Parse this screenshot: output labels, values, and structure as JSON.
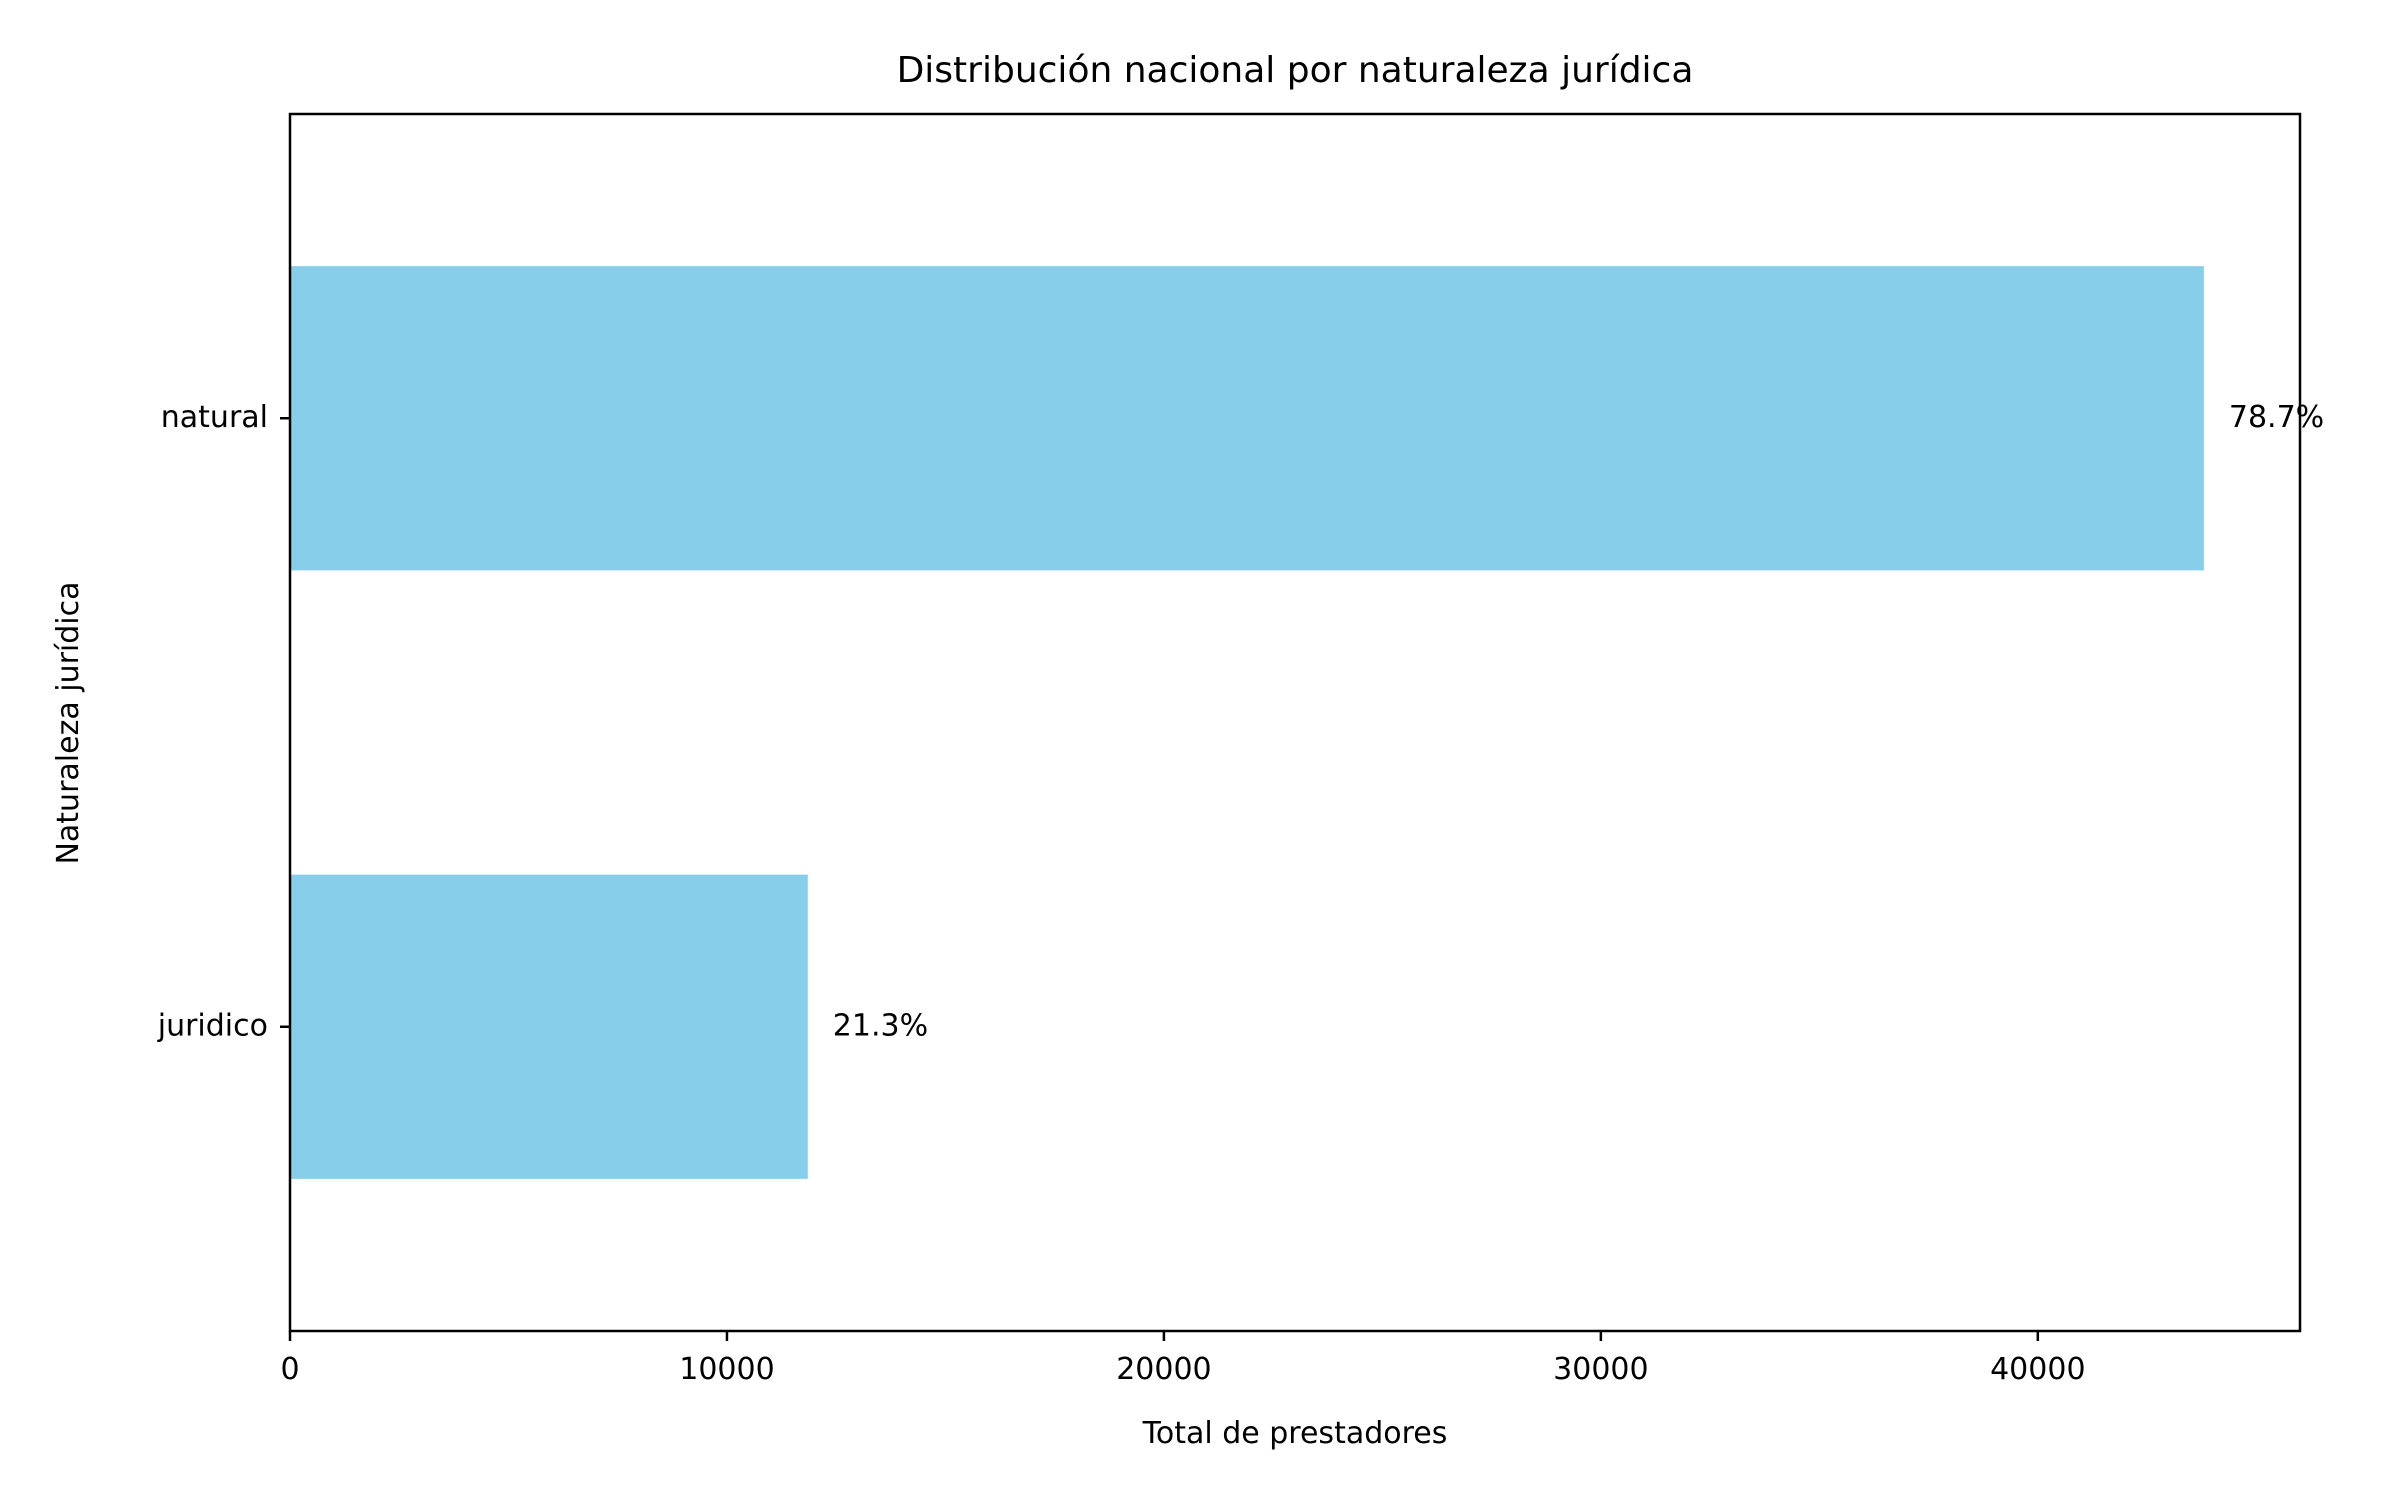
{
  "chart_data": {
    "type": "bar",
    "orientation": "horizontal",
    "title": "Distribución nacional por naturaleza jurídica",
    "xlabel": "Total de prestadores",
    "ylabel": "Naturaleza jurídica",
    "categories": [
      "natural",
      "juridico"
    ],
    "values": [
      43800,
      11850
    ],
    "data_labels": [
      "78.7%",
      "21.3%"
    ],
    "xlim": [
      0,
      46000
    ],
    "xticks": [
      0,
      10000,
      20000,
      30000,
      40000
    ],
    "xtick_labels": [
      "0",
      "10000",
      "20000",
      "30000",
      "40000"
    ],
    "bar_color": "#87ceeb",
    "grid": false,
    "legend": "none"
  }
}
